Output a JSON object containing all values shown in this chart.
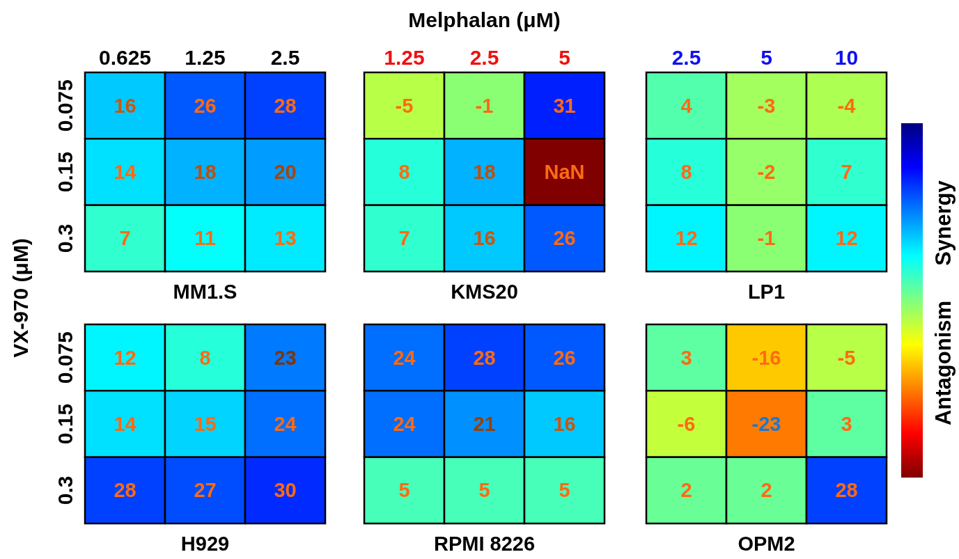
{
  "chart_data": [
    {
      "type": "heatmap",
      "title": "MM1.S",
      "ylabel": "VX-970 (μM)",
      "categories": [
        "0.625",
        "1.25",
        "2.5"
      ],
      "y_categories": [
        "0.075",
        "0.15",
        "0.3"
      ],
      "cells": [
        [
          16,
          26,
          28
        ],
        [
          14,
          18,
          20
        ],
        [
          7,
          11,
          13
        ]
      ],
      "data_labels": true
    },
    {
      "type": "heatmap",
      "title": "KMS20",
      "xlabel": "Melphalan (μM)",
      "categories": [
        "1.25",
        "2.5",
        "5"
      ],
      "y_categories": [
        "0.075",
        "0.15",
        "0.3"
      ],
      "cells": [
        [
          -5,
          -1,
          31
        ],
        [
          8,
          18,
          null
        ],
        [
          7,
          16,
          26
        ]
      ],
      "cell_labels": [
        [
          "-5",
          "-1",
          "31"
        ],
        [
          "8",
          "18",
          "NaN"
        ],
        [
          "7",
          "16",
          "26"
        ]
      ],
      "tick_labels": "x"
    },
    {
      "type": "heatmap",
      "title": "LP1",
      "categories": [
        "2.5",
        "5",
        "10"
      ],
      "y_categories": [
        "0.075",
        "0.15",
        "0.3"
      ],
      "cells": [
        [
          4,
          -3,
          -4
        ],
        [
          8,
          -2,
          7
        ],
        [
          12,
          -1,
          12
        ]
      ],
      "data_labels": true,
      "tick_labels": "x"
    },
    {
      "type": "heatmap",
      "title": "H929",
      "categories": [
        "0.625",
        "1.25",
        "2.5"
      ],
      "y_categories": [
        "0.075",
        "0.15",
        "0.3"
      ],
      "cells": [
        [
          12,
          8,
          23
        ],
        [
          14,
          15,
          24
        ],
        [
          28,
          27,
          30
        ]
      ],
      "data_labels": true,
      "tick_labels": "y"
    },
    {
      "type": "heatmap",
      "title": "RPMI 8226",
      "categories": [
        "1.25",
        "2.5",
        "5"
      ],
      "y_categories": [
        "0.075",
        "0.15",
        "0.3"
      ],
      "cells": [
        [
          24,
          28,
          26
        ],
        [
          24,
          21,
          16
        ],
        [
          5,
          5,
          5
        ]
      ],
      "data_labels": true,
      "tick_labels": false
    },
    {
      "type": "heatmap",
      "title": "OPM2",
      "categories": [
        "2.5",
        "5",
        "10"
      ],
      "y_categories": [
        "0.075",
        "0.15",
        "0.3"
      ],
      "cells": [
        [
          3,
          -16,
          -5
        ],
        [
          -6,
          -23,
          3
        ],
        [
          2,
          2,
          28
        ]
      ],
      "data_labels": true,
      "tick_labels": false,
      "annotations": [
        "Synergy",
        "Antagonism"
      ]
    }
  ]
}
